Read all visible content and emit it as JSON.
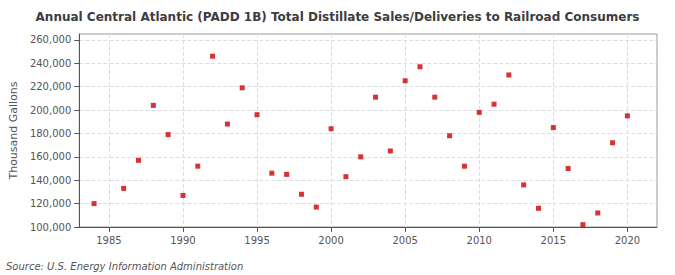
{
  "chart_data": {
    "type": "scatter",
    "title": "Annual Central Atlantic (PADD 1B) Total Distillate Sales/Deliveries to Railroad Consumers",
    "ylabel": "Thousand Gallons",
    "annotations": [
      "Source: U.S. Energy Information Administration"
    ],
    "x": [
      1984,
      1986,
      1987,
      1988,
      1989,
      1990,
      1991,
      1992,
      1993,
      1994,
      1995,
      1996,
      1997,
      1998,
      1999,
      2000,
      2001,
      2002,
      2003,
      2004,
      2005,
      2006,
      2007,
      2008,
      2009,
      2010,
      2011,
      2012,
      2013,
      2014,
      2015,
      2016,
      2017,
      2018,
      2019,
      2020
    ],
    "values": [
      120000,
      133000,
      157000,
      204000,
      179000,
      127000,
      152000,
      246000,
      188000,
      219000,
      196000,
      146000,
      145000,
      128000,
      117000,
      184000,
      143000,
      160000,
      211000,
      165000,
      225000,
      237000,
      211000,
      178000,
      152000,
      198000,
      205000,
      230000,
      136000,
      116000,
      185000,
      150000,
      102000,
      112000,
      172000,
      195000
    ],
    "color": "#cc0000",
    "marker": "square",
    "xlim": [
      1983,
      2022
    ],
    "xticks": [
      1985,
      1990,
      1995,
      2000,
      2005,
      2010,
      2015,
      2020
    ],
    "ylim": [
      100000,
      265000
    ],
    "yticks": [
      {
        "value": 100000,
        "label": "100,000"
      },
      {
        "value": 120000,
        "label": "120,000"
      },
      {
        "value": 140000,
        "label": "140,000"
      },
      {
        "value": 160000,
        "label": "160,000"
      },
      {
        "value": 180000,
        "label": "180,000"
      },
      {
        "value": 200000,
        "label": "200,000"
      },
      {
        "value": 220000,
        "label": "220,000"
      },
      {
        "value": 240000,
        "label": "240,000"
      },
      {
        "value": 260000,
        "label": "260,000"
      }
    ],
    "grid": true
  }
}
